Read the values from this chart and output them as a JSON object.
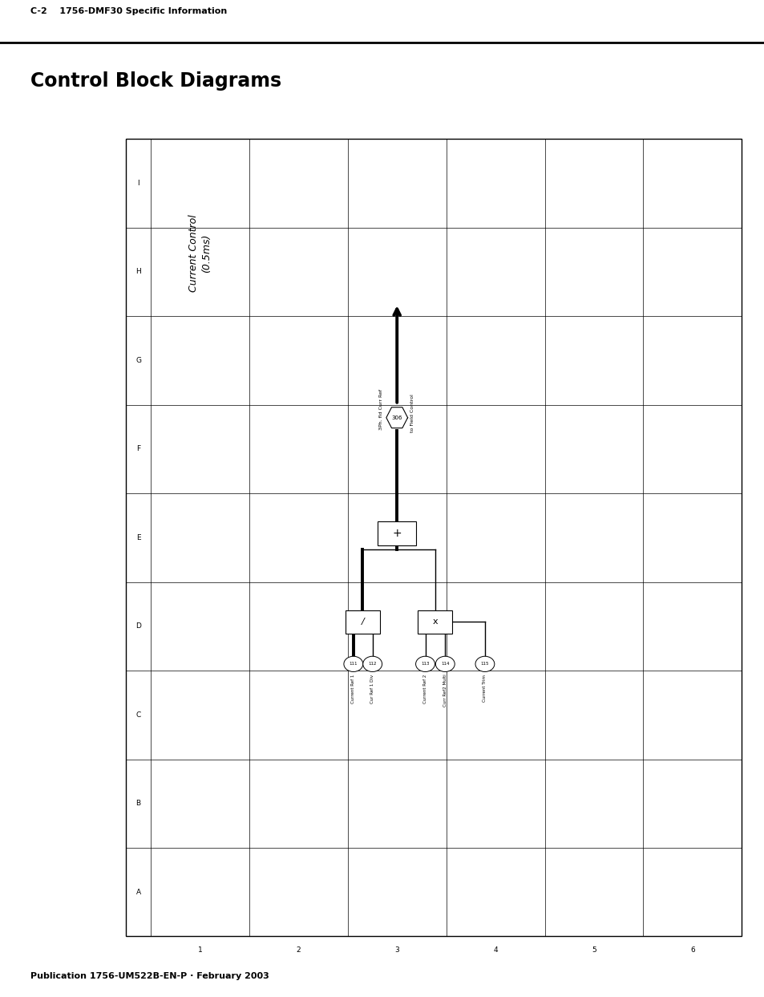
{
  "title": "Control Block Diagrams",
  "header_left": "C-2    1756-DMF30 Specific Information",
  "footer": "Publication 1756-UM522B-EN-P · February 2003",
  "diagram_title": "Current Control\n(0.5ms)",
  "row_labels": [
    "I",
    "H",
    "G",
    "F",
    "E",
    "D",
    "C",
    "B",
    "A"
  ],
  "col_labels": [
    "1",
    "2",
    "3",
    "4",
    "5",
    "6"
  ],
  "label_3ph": "3Ph. fld Curr Ref",
  "label_field_ctrl": "to Field Control",
  "tag_306": "306",
  "sum_block_label": "+",
  "div_block_label": "/",
  "mul_block_label": "x",
  "tag_111": "111",
  "tag_112": "112",
  "tag_113": "113",
  "tag_114": "114",
  "tag_115": "115",
  "input_label_111": "Current Ref 1",
  "input_label_112": "Cur Ref 1 Div",
  "input_label_113": "Current Ref 2",
  "input_label_114": "Curr Ref2 Multi",
  "input_label_115": "Current Trim",
  "bg_color": "#ffffff",
  "line_color": "#000000",
  "text_color": "#000000"
}
